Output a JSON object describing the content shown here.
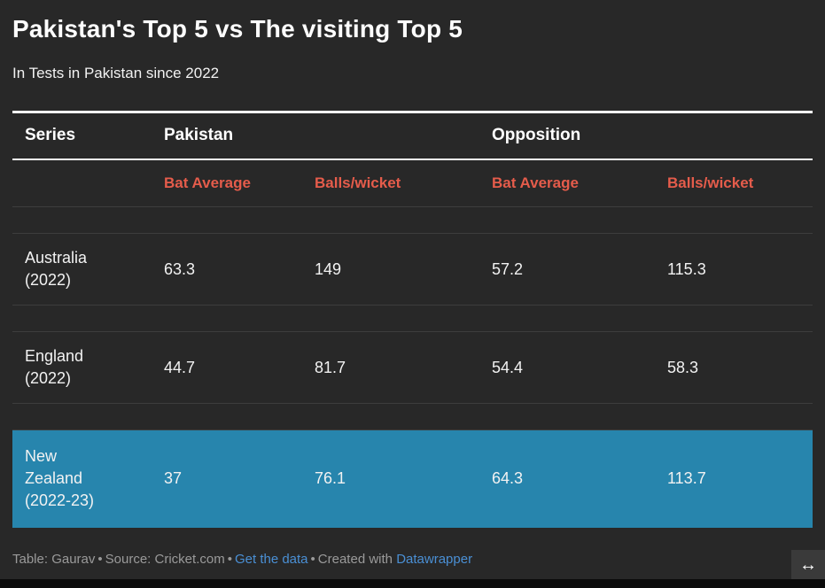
{
  "header": {
    "title": "Pakistan's Top 5 vs The visiting Top 5",
    "subtitle": "In Tests in Pakistan since 2022"
  },
  "table": {
    "col_groups": {
      "series": "Series",
      "pakistan": "Pakistan",
      "opposition": "Opposition"
    },
    "sub_headers": [
      "Bat Average",
      "Balls/wicket",
      "Bat Average",
      "Balls/wicket"
    ],
    "rows": [
      {
        "team": "Australia",
        "season": "(2022)",
        "pakistan": {
          "bat_average": "63.3",
          "balls_per_wicket": "149"
        },
        "opposition": {
          "bat_average": "57.2",
          "balls_per_wicket": "115.3"
        },
        "highlighted": false
      },
      {
        "team": "England",
        "season": "(2022)",
        "pakistan": {
          "bat_average": "44.7",
          "balls_per_wicket": "81.7"
        },
        "opposition": {
          "bat_average": "54.4",
          "balls_per_wicket": "58.3"
        },
        "highlighted": false
      },
      {
        "team": "New Zealand",
        "season": "(2022-23)",
        "pakistan": {
          "bat_average": "37",
          "balls_per_wicket": "76.1"
        },
        "opposition": {
          "bat_average": "64.3",
          "balls_per_wicket": "113.7"
        },
        "highlighted": true
      }
    ]
  },
  "footer": {
    "credit": "Table: Gaurav",
    "source": "Source: Cricket.com",
    "separator": "•",
    "get_data": "Get the data",
    "created_with": "Created with",
    "brand": "Datawrapper",
    "resize_icon": "↔"
  },
  "colors": {
    "background": "#282828",
    "accent_red": "#e55c4b",
    "highlight_teal": "#2785ad",
    "link_blue": "#4a8fd4",
    "rule_white": "#fafafa",
    "divider_gray": "#3d3d3d"
  },
  "chart_data": {
    "type": "table",
    "title": "Pakistan's Top 5 vs The visiting Top 5",
    "subtitle": "In Tests in Pakistan since 2022",
    "column_groups": [
      "Series",
      "Pakistan",
      "Opposition"
    ],
    "columns": [
      "Series",
      "Pakistan Bat Average",
      "Pakistan Balls/wicket",
      "Opposition Bat Average",
      "Opposition Balls/wicket"
    ],
    "rows": [
      [
        "Australia (2022)",
        63.3,
        149,
        57.2,
        115.3
      ],
      [
        "England (2022)",
        44.7,
        81.7,
        54.4,
        58.3
      ],
      [
        "New Zealand (2022-23)",
        37,
        76.1,
        64.3,
        113.7
      ]
    ],
    "highlighted_row": "New Zealand (2022-23)",
    "layout_hints": {
      "grid": "horizontal-dividers",
      "highlight_color": "#2785ad",
      "theme": "dark"
    }
  }
}
